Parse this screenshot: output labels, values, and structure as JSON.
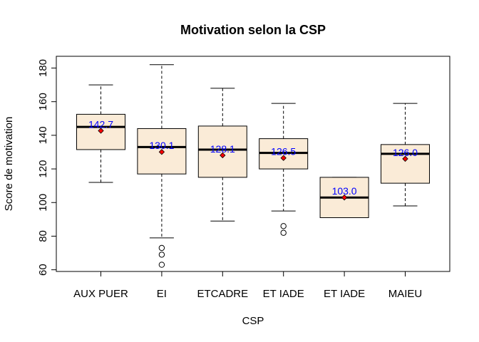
{
  "chart_data": {
    "type": "boxplot",
    "title": "Motivation selon la CSP",
    "xlabel": "CSP",
    "ylabel": "Score de motivation",
    "ylim": [
      59,
      187
    ],
    "yticks": [
      "60",
      "80",
      "100",
      "120",
      "140",
      "160",
      "180"
    ],
    "box_fill": "#faebd7",
    "mean_color": "#ff0000",
    "mean_label_color": "#0000ff",
    "categories": [
      "AUX PUER",
      "EI",
      "ETCADRE",
      "ET IADE",
      "ET IADE",
      "MAIEU"
    ],
    "boxes": [
      {
        "category": "AUX PUER",
        "whisker_low": 112,
        "q1": 131.5,
        "median": 145,
        "q3": 152.5,
        "whisker_high": 170,
        "outliers": [],
        "mean": 142.7,
        "mean_label": "142.7"
      },
      {
        "category": "EI",
        "whisker_low": 79,
        "q1": 117,
        "median": 133,
        "q3": 144,
        "whisker_high": 182,
        "outliers": [
          63,
          69,
          73
        ],
        "mean": 130.1,
        "mean_label": "130.1"
      },
      {
        "category": "ETCADRE",
        "whisker_low": 89,
        "q1": 115,
        "median": 131.5,
        "q3": 145.5,
        "whisker_high": 168,
        "outliers": [],
        "mean": 128.1,
        "mean_label": "128.1"
      },
      {
        "category": "ET IADE",
        "whisker_low": 95,
        "q1": 120,
        "median": 129.5,
        "q3": 138,
        "whisker_high": 159,
        "outliers": [
          82,
          86
        ],
        "mean": 126.5,
        "mean_label": "126.5"
      },
      {
        "category": "ET IADE",
        "whisker_low": 91,
        "q1": 91,
        "median": 103,
        "q3": 115,
        "whisker_high": 115,
        "outliers": [],
        "mean": 103.0,
        "mean_label": "103.0"
      },
      {
        "category": "MAIEU",
        "whisker_low": 98,
        "q1": 111.5,
        "median": 129,
        "q3": 134.5,
        "whisker_high": 159,
        "outliers": [],
        "mean": 126.0,
        "mean_label": "126.0"
      }
    ]
  }
}
